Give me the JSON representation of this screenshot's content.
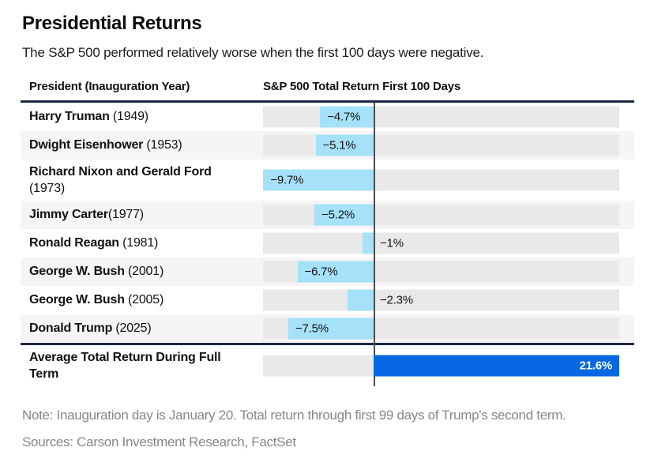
{
  "header": {
    "title": "Presidential Returns",
    "subtitle": "The S&P 500 performed relatively worse when the first 100 days were negative."
  },
  "table": {
    "col1_header": "President (Inauguration Year)",
    "col2_header": "S&P 500 Total Return First 100 Days"
  },
  "chart_data": {
    "type": "bar",
    "orientation": "horizontal",
    "unit": "percent",
    "title": "S&P 500 Total Return First 100 Days",
    "xlim": [
      -9.7,
      21.6
    ],
    "zero_baseline": true,
    "rows": [
      {
        "name": "Harry Truman",
        "year": " (1949)",
        "value": -4.7,
        "label": "−4.7%"
      },
      {
        "name": "Dwight Eisenhower",
        "year": " (1953)",
        "value": -5.1,
        "label": "−5.1%"
      },
      {
        "name": "Richard Nixon and Gerald Ford",
        "year": " (1973)",
        "value": -9.7,
        "label": "−9.7%"
      },
      {
        "name": "Jimmy Carter",
        "year": "(1977)",
        "value": -5.2,
        "label": "−5.2%"
      },
      {
        "name": "Ronald Reagan",
        "year": " (1981)",
        "value": -1,
        "label": "−1%"
      },
      {
        "name": "George W. Bush",
        "year": " (2001)",
        "value": -6.7,
        "label": "−6.7%"
      },
      {
        "name": "George W. Bush",
        "year": " (2005)",
        "value": -2.3,
        "label": "−2.3%"
      },
      {
        "name": "Donald Trump",
        "year": " (2025)",
        "value": -7.5,
        "label": "−7.5%"
      }
    ],
    "summary_row": {
      "name": "Average Total Return During Full Term",
      "year": "",
      "value": 21.6,
      "label": "21.6%"
    }
  },
  "footer": {
    "note": "Note: Inauguration day is January 20. Total return through first 99 days of Trump's second term.",
    "sources": "Sources: Carson Investment Research, FactSet"
  },
  "colors": {
    "negative_bar": "#a5e1f8",
    "positive_bar": "#0568e2",
    "track": "#e9e9e9",
    "row_shaded": "#f5f5f5",
    "separator_navy": "#1a2942",
    "zero_line": "#4d4d4d",
    "muted_text": "#878787"
  }
}
